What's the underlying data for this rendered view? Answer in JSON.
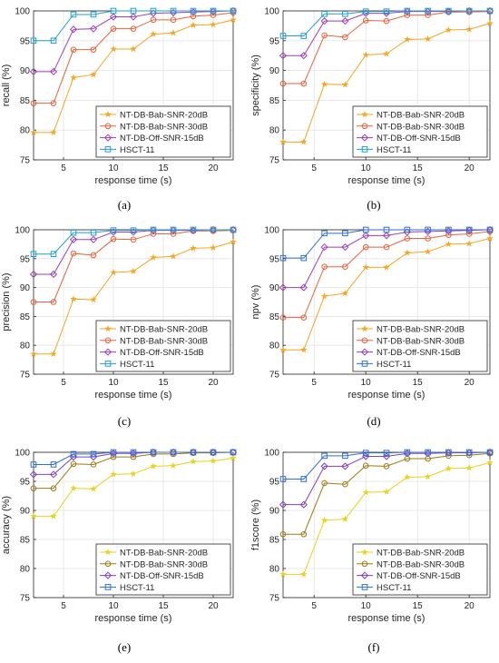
{
  "colors": {
    "NT-DB-Bab-SNR-20dB": "#f5a623",
    "NT-DB-Bab-SNR-30dB": "#e8623a",
    "NT-DB-Off-SNR-15dB": "#9b3fb5",
    "HSCT-11": "#1f9fcf",
    "alt_20dB": "#e9d21c",
    "alt_30dB": "#9a7b12",
    "alt_15dB": "#8040c0",
    "alt_HSCT": "#2e6fd6"
  },
  "chart_data": [
    {
      "type": "line",
      "caption": "(a)",
      "title": "",
      "xlabel": "response time (s)",
      "ylabel": "recall (%)",
      "xlim": [
        2,
        22
      ],
      "ylim": [
        75,
        100
      ],
      "xticks": [
        5,
        10,
        15,
        20
      ],
      "yticks": [
        75,
        80,
        85,
        90,
        95,
        100
      ],
      "grid": true,
      "legend": "bottom-right",
      "x": [
        2,
        4,
        6,
        8,
        10,
        12,
        14,
        16,
        18,
        20,
        22
      ],
      "series": [
        {
          "name": "NT-DB-Bab-SNR-20dB",
          "marker": "star",
          "color": "#f5a623",
          "values": [
            79.6,
            79.6,
            88.8,
            89.3,
            93.6,
            93.6,
            96.1,
            96.3,
            97.6,
            97.7,
            98.5
          ]
        },
        {
          "name": "NT-DB-Bab-SNR-30dB",
          "marker": "circle",
          "color": "#e8623a",
          "values": [
            84.5,
            84.5,
            93.5,
            93.5,
            97.0,
            97.0,
            98.5,
            98.5,
            99.1,
            99.3,
            99.7
          ]
        },
        {
          "name": "NT-DB-Off-SNR-15dB",
          "marker": "diamond",
          "color": "#9b3fb5",
          "values": [
            89.8,
            89.8,
            96.9,
            97.0,
            99.0,
            99.0,
            99.6,
            99.7,
            99.8,
            99.9,
            100.0
          ]
        },
        {
          "name": "HSCT-11",
          "marker": "square",
          "color": "#1f9fcf",
          "values": [
            95.0,
            95.0,
            99.4,
            99.4,
            100.0,
            100.0,
            100.0,
            100.0,
            100.0,
            100.0,
            100.0
          ]
        }
      ]
    },
    {
      "type": "line",
      "caption": "(b)",
      "title": "",
      "xlabel": "response time (s)",
      "ylabel": "specificity (%)",
      "xlim": [
        2,
        22
      ],
      "ylim": [
        75,
        100
      ],
      "xticks": [
        5,
        10,
        15,
        20
      ],
      "yticks": [
        75,
        80,
        85,
        90,
        95,
        100
      ],
      "grid": true,
      "legend": "bottom-right",
      "x": [
        2,
        4,
        6,
        8,
        10,
        12,
        14,
        16,
        18,
        20,
        22
      ],
      "series": [
        {
          "name": "NT-DB-Bab-SNR-20dB",
          "marker": "star",
          "color": "#f5a623",
          "values": [
            78.0,
            78.0,
            87.7,
            87.6,
            92.6,
            92.8,
            95.2,
            95.3,
            96.8,
            96.9,
            97.9
          ]
        },
        {
          "name": "NT-DB-Bab-SNR-30dB",
          "marker": "circle",
          "color": "#e8623a",
          "values": [
            87.8,
            87.8,
            95.9,
            95.6,
            98.4,
            98.3,
            99.3,
            99.3,
            99.8,
            99.8,
            99.9
          ]
        },
        {
          "name": "NT-DB-Off-SNR-15dB",
          "marker": "diamond",
          "color": "#9b3fb5",
          "values": [
            92.5,
            92.5,
            98.3,
            98.3,
            99.6,
            99.6,
            99.9,
            99.9,
            99.9,
            100.0,
            100.0
          ]
        },
        {
          "name": "HSCT-11",
          "marker": "square",
          "color": "#1f9fcf",
          "values": [
            95.8,
            95.8,
            99.5,
            99.5,
            99.9,
            99.9,
            100.0,
            100.0,
            100.0,
            100.0,
            100.0
          ]
        }
      ]
    },
    {
      "type": "line",
      "caption": "(c)",
      "title": "",
      "xlabel": "response time (s)",
      "ylabel": "precision (%)",
      "xlim": [
        2,
        22
      ],
      "ylim": [
        75,
        100
      ],
      "xticks": [
        5,
        10,
        15,
        20
      ],
      "yticks": [
        75,
        80,
        85,
        90,
        95,
        100
      ],
      "grid": true,
      "legend": "bottom-right",
      "x": [
        2,
        4,
        6,
        8,
        10,
        12,
        14,
        16,
        18,
        20,
        22
      ],
      "series": [
        {
          "name": "NT-DB-Bab-SNR-20dB",
          "marker": "star",
          "color": "#f5a623",
          "values": [
            78.5,
            78.5,
            88.0,
            87.9,
            92.6,
            92.8,
            95.2,
            95.4,
            96.8,
            96.9,
            97.9
          ]
        },
        {
          "name": "NT-DB-Bab-SNR-30dB",
          "marker": "circle",
          "color": "#e8623a",
          "values": [
            87.5,
            87.5,
            95.9,
            95.6,
            98.4,
            98.3,
            99.3,
            99.3,
            99.8,
            99.8,
            99.9
          ]
        },
        {
          "name": "NT-DB-Off-SNR-15dB",
          "marker": "diamond",
          "color": "#9b3fb5",
          "values": [
            92.3,
            92.3,
            98.3,
            98.3,
            99.6,
            99.6,
            99.9,
            99.9,
            99.9,
            100.0,
            100.0
          ]
        },
        {
          "name": "HSCT-11",
          "marker": "square",
          "color": "#1f9fcf",
          "values": [
            95.8,
            95.8,
            99.5,
            99.5,
            99.9,
            99.9,
            100.0,
            100.0,
            100.0,
            100.0,
            100.0
          ]
        }
      ]
    },
    {
      "type": "line",
      "caption": "(d)",
      "title": "",
      "xlabel": "response time (s)",
      "ylabel": "npv (%)",
      "xlim": [
        2,
        22
      ],
      "ylim": [
        75,
        100
      ],
      "xticks": [
        5,
        10,
        15,
        20
      ],
      "yticks": [
        75,
        80,
        85,
        90,
        95,
        100
      ],
      "grid": true,
      "legend": "bottom-right",
      "x": [
        2,
        4,
        6,
        8,
        10,
        12,
        14,
        16,
        18,
        20,
        22
      ],
      "series": [
        {
          "name": "NT-DB-Bab-SNR-20dB",
          "marker": "star",
          "color": "#f5a623",
          "values": [
            79.2,
            79.2,
            88.5,
            89.0,
            93.5,
            93.5,
            96.0,
            96.2,
            97.5,
            97.6,
            98.5
          ]
        },
        {
          "name": "NT-DB-Bab-SNR-30dB",
          "marker": "circle",
          "color": "#e8623a",
          "values": [
            84.8,
            84.8,
            93.6,
            93.6,
            97.0,
            97.0,
            98.5,
            98.5,
            99.1,
            99.3,
            99.7
          ]
        },
        {
          "name": "NT-DB-Off-SNR-15dB",
          "marker": "diamond",
          "color": "#9b3fb5",
          "values": [
            90.0,
            90.0,
            97.0,
            97.0,
            99.0,
            99.0,
            99.6,
            99.7,
            99.8,
            99.9,
            100.0
          ]
        },
        {
          "name": "HSCT-11",
          "marker": "square",
          "color": "#2e6fd6",
          "values": [
            95.1,
            95.1,
            99.4,
            99.4,
            100.0,
            100.0,
            100.0,
            100.0,
            100.0,
            100.0,
            100.0
          ]
        }
      ]
    },
    {
      "type": "line",
      "caption": "(e)",
      "title": "",
      "xlabel": "response time (s)",
      "ylabel": "accuracy (%)",
      "xlim": [
        2,
        22
      ],
      "ylim": [
        75,
        100
      ],
      "xticks": [
        5,
        10,
        15,
        20
      ],
      "yticks": [
        75,
        80,
        85,
        90,
        95,
        100
      ],
      "grid": true,
      "legend": "bottom-right",
      "x": [
        2,
        4,
        6,
        8,
        10,
        12,
        14,
        16,
        18,
        20,
        22
      ],
      "series": [
        {
          "name": "NT-DB-Bab-SNR-20dB",
          "marker": "star",
          "color": "#e9d21c",
          "values": [
            89.0,
            89.0,
            93.8,
            93.7,
            96.2,
            96.3,
            97.6,
            97.7,
            98.4,
            98.5,
            99.0
          ]
        },
        {
          "name": "NT-DB-Bab-SNR-30dB",
          "marker": "circle",
          "color": "#9a7b12",
          "values": [
            93.8,
            93.8,
            98.0,
            97.9,
            99.2,
            99.2,
            99.7,
            99.7,
            99.9,
            99.9,
            100.0
          ]
        },
        {
          "name": "NT-DB-Off-SNR-15dB",
          "marker": "diamond",
          "color": "#8040c0",
          "values": [
            96.2,
            96.2,
            99.2,
            99.2,
            99.8,
            99.8,
            100.0,
            100.0,
            100.0,
            100.0,
            100.0
          ]
        },
        {
          "name": "HSCT-11",
          "marker": "square",
          "color": "#2e6fd6",
          "values": [
            97.9,
            97.9,
            99.7,
            99.7,
            100.0,
            100.0,
            100.0,
            100.0,
            100.0,
            100.0,
            100.0
          ]
        }
      ]
    },
    {
      "type": "line",
      "caption": "(f)",
      "title": "",
      "xlabel": "response time (s)",
      "ylabel": "f1score (%)",
      "xlim": [
        2,
        22
      ],
      "ylim": [
        75,
        100
      ],
      "xticks": [
        5,
        10,
        15,
        20
      ],
      "yticks": [
        75,
        80,
        85,
        90,
        95,
        100
      ],
      "grid": true,
      "legend": "bottom-right",
      "x": [
        2,
        4,
        6,
        8,
        10,
        12,
        14,
        16,
        18,
        20,
        22
      ],
      "series": [
        {
          "name": "NT-DB-Bab-SNR-20dB",
          "marker": "star",
          "color": "#e9d21c",
          "values": [
            79.0,
            79.0,
            88.3,
            88.5,
            93.1,
            93.2,
            95.7,
            95.8,
            97.2,
            97.3,
            98.2
          ]
        },
        {
          "name": "NT-DB-Bab-SNR-30dB",
          "marker": "circle",
          "color": "#9a7b12",
          "values": [
            85.9,
            85.9,
            94.7,
            94.5,
            97.7,
            97.6,
            98.9,
            98.9,
            99.4,
            99.5,
            99.8
          ]
        },
        {
          "name": "NT-DB-Off-SNR-15dB",
          "marker": "diamond",
          "color": "#8040c0",
          "values": [
            91.0,
            91.0,
            97.6,
            97.6,
            99.3,
            99.3,
            99.8,
            99.8,
            99.9,
            99.9,
            100.0
          ]
        },
        {
          "name": "HSCT-11",
          "marker": "square",
          "color": "#2e6fd6",
          "values": [
            95.4,
            95.4,
            99.4,
            99.4,
            99.9,
            99.9,
            100.0,
            100.0,
            100.0,
            100.0,
            100.0
          ]
        }
      ]
    }
  ]
}
